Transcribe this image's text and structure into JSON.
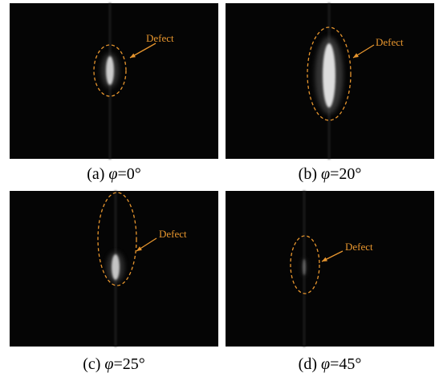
{
  "panels": [
    {
      "label": "(a)",
      "symbol": "φ",
      "angle": "=0°",
      "annotation": "Defect"
    },
    {
      "label": "(b)",
      "symbol": "φ",
      "angle": "=20°",
      "annotation": "Defect"
    },
    {
      "label": "(c)",
      "symbol": "φ",
      "angle": "=25°",
      "annotation": "Defect"
    },
    {
      "label": "(d)",
      "symbol": "φ",
      "angle": "=45°",
      "annotation": "Defect"
    }
  ]
}
